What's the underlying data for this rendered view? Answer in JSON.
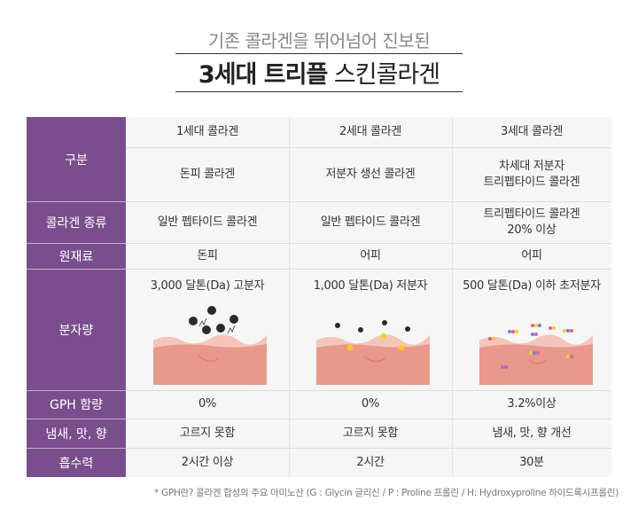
{
  "heading": {
    "subtitle": "기존 콜라겐을 뛰어넘어 진보된",
    "title_bold": "3세대 트리플",
    "title_light": "스킨콜라겐"
  },
  "table": {
    "row_headers": [
      "구분",
      "콜라겐 종류",
      "원재료",
      "분자량",
      "GPH 함량",
      "냄새, 맛, 향",
      "흡수력"
    ],
    "columns": [
      {
        "generation": "1세대 콜라겐",
        "type": "돈피 콜라겐",
        "collagen_kind": "일반 펩타이드 콜라겐",
        "material": "돈피",
        "molecular_weight": "3,000 달톤(Da) 고분자",
        "gph": "0%",
        "smell": "고르지 못함",
        "absorption": "2시간 이상"
      },
      {
        "generation": "2세대 콜라겐",
        "type": "저분자 생선 콜라겐",
        "collagen_kind": "일반 펩타이드 콜라겐",
        "material": "어피",
        "molecular_weight": "1,000 달톤(Da) 저분자",
        "gph": "0%",
        "smell": "고르지 못함",
        "absorption": "2시간"
      },
      {
        "generation": "3세대 콜라겐",
        "type_line1": "차세대 저분자",
        "type_line2": "트리펩타이드 콜라겐",
        "collagen_kind_line1": "트리펩타이드 콜라겐",
        "collagen_kind_line2": "20% 이상",
        "material": "어피",
        "molecular_weight": "500 달톤(Da) 이하 초저분자",
        "gph": "3.2%이상",
        "smell": "냄새, 맛, 향 개선",
        "absorption": "30분"
      }
    ]
  },
  "footnote": "* GPH란? 콜라겐 합성의 주요 아미노산 (G : Glycin 글리신 / P : Proline 프롤린 / H: Hydroxyproline 하이드록시프롤린)",
  "colors": {
    "header_purple": "#7a4e8d",
    "table_bg": "#f6f6f6",
    "skin_top": "#f2b8ad",
    "skin_body": "#e9988c"
  }
}
